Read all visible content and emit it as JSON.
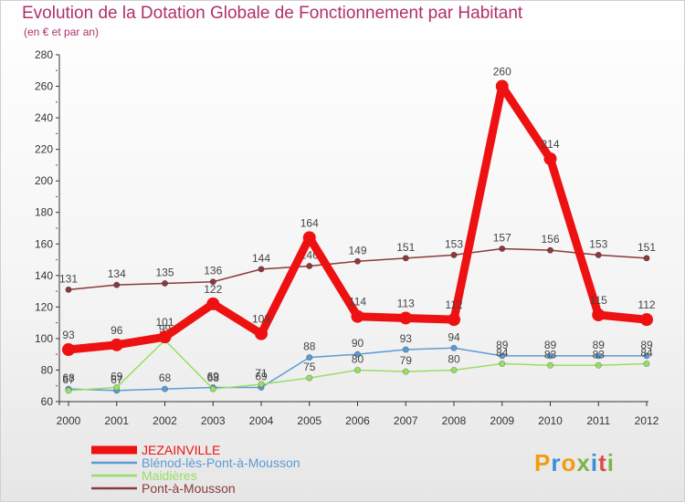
{
  "title": "Evolution de la Dotation Globale de Fonctionnement par Habitant",
  "subtitle": "(en € et par an)",
  "logo": {
    "text": "Proxiti",
    "colors": [
      "#f39c12",
      "#3a8ed8",
      "#f39c12",
      "#7ab648",
      "#3a8ed8",
      "#e04a4a",
      "#7ab648"
    ]
  },
  "chart_data": {
    "type": "line",
    "title": "Evolution de la Dotation Globale de Fonctionnement par Habitant",
    "subtitle": "(en € et par an)",
    "xlabel": "",
    "ylabel": "",
    "x": [
      "2000",
      "2001",
      "2002",
      "2003",
      "2004",
      "2005",
      "2006",
      "2007",
      "2008",
      "2009",
      "2010",
      "2011",
      "2012"
    ],
    "ylim": [
      60,
      280
    ],
    "yticks": [
      60,
      80,
      100,
      120,
      140,
      160,
      180,
      200,
      220,
      240,
      260,
      280
    ],
    "grid": false,
    "legend_position": "bottom-left",
    "series": [
      {
        "name": "JEZAINVILLE",
        "color": "#ee1111",
        "bold": true,
        "values": [
          93,
          96,
          101,
          122,
          103,
          164,
          114,
          113,
          112,
          260,
          214,
          115,
          112
        ],
        "labels": [
          "93",
          "96",
          "101",
          "122",
          "103",
          "164",
          "114",
          "113",
          "112",
          "260",
          "214",
          "115",
          "112"
        ]
      },
      {
        "name": "Blénod-lès-Pont-à-Mousson",
        "color": "#5b9bd5",
        "bold": false,
        "values": [
          68,
          67,
          68,
          69,
          69,
          88,
          90,
          93,
          94,
          89,
          89,
          89,
          89
        ],
        "labels": [
          "68",
          "67",
          "68",
          "69",
          "69",
          "88",
          "90",
          "93",
          "94",
          "89",
          "89",
          "89",
          "89"
        ]
      },
      {
        "name": "Maidières",
        "color": "#99dd66",
        "bold": false,
        "values": [
          67,
          69,
          99,
          68,
          71,
          75,
          80,
          79,
          80,
          84,
          83,
          83,
          84
        ],
        "labels": [
          "67",
          "69",
          "99",
          "68",
          "71",
          "75",
          "80",
          "79",
          "80",
          "84",
          "83",
          "83",
          "84"
        ]
      },
      {
        "name": "Pont-à-Mousson",
        "color": "#8b3a3a",
        "bold": false,
        "values": [
          131,
          134,
          135,
          136,
          144,
          146,
          149,
          151,
          153,
          157,
          156,
          153,
          151
        ],
        "labels": [
          "131",
          "134",
          "135",
          "136",
          "144",
          "146",
          "149",
          "151",
          "153",
          "157",
          "156",
          "153",
          "151"
        ]
      }
    ]
  }
}
